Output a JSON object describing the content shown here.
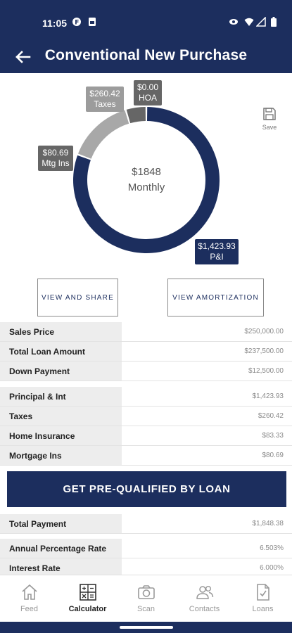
{
  "status": {
    "time": "11:05"
  },
  "header": {
    "title": "Conventional New Purchase"
  },
  "chart": {
    "total_label": "$1848",
    "period_label": "Monthly",
    "labels": {
      "taxes": {
        "amount": "$260.42",
        "name": "Taxes"
      },
      "hoa": {
        "amount": "$0.00",
        "name": "HOA"
      },
      "mtg": {
        "amount": "$80.69",
        "name": "Mtg Ins"
      },
      "pi": {
        "amount": "$1,423.93",
        "name": "P&I"
      }
    },
    "colors": {
      "pi": "#1c2e5e",
      "taxes": "#a8a8a8",
      "mtg": "#666666",
      "hoa": "#666666"
    }
  },
  "chart_data": {
    "type": "pie",
    "categories": [
      "P&I",
      "Taxes",
      "Mtg Ins",
      "HOA"
    ],
    "values": [
      1423.93,
      260.42,
      80.69,
      0.0
    ]
  },
  "save": {
    "label": "Save"
  },
  "actions": {
    "share": "VIEW AND SHARE",
    "amortization": "VIEW AMORTIZATION"
  },
  "loan": [
    {
      "label": "Sales Price",
      "value": "$250,000.00"
    },
    {
      "label": "Total Loan Amount",
      "value": "$237,500.00"
    },
    {
      "label": "Down Payment",
      "value": "$12,500.00"
    }
  ],
  "payment": [
    {
      "label": "Principal & Int",
      "value": "$1,423.93"
    },
    {
      "label": "Taxes",
      "value": "$260.42"
    },
    {
      "label": "Home Insurance",
      "value": "$83.33"
    },
    {
      "label": "Mortgage Ins",
      "value": "$80.69"
    }
  ],
  "cta": {
    "label": "GET PRE-QUALIFIED BY LOAN"
  },
  "total": {
    "label": "Total Payment",
    "value": "$1,848.38"
  },
  "rates": [
    {
      "label": "Annual Percentage Rate",
      "value": "6.503%"
    },
    {
      "label": "Interest Rate",
      "value": "6.000%"
    }
  ],
  "tabs": [
    {
      "label": "Feed",
      "icon": "home-icon"
    },
    {
      "label": "Calculator",
      "icon": "calculator-icon"
    },
    {
      "label": "Scan",
      "icon": "camera-icon"
    },
    {
      "label": "Contacts",
      "icon": "contacts-icon"
    },
    {
      "label": "Loans",
      "icon": "document-icon"
    }
  ]
}
